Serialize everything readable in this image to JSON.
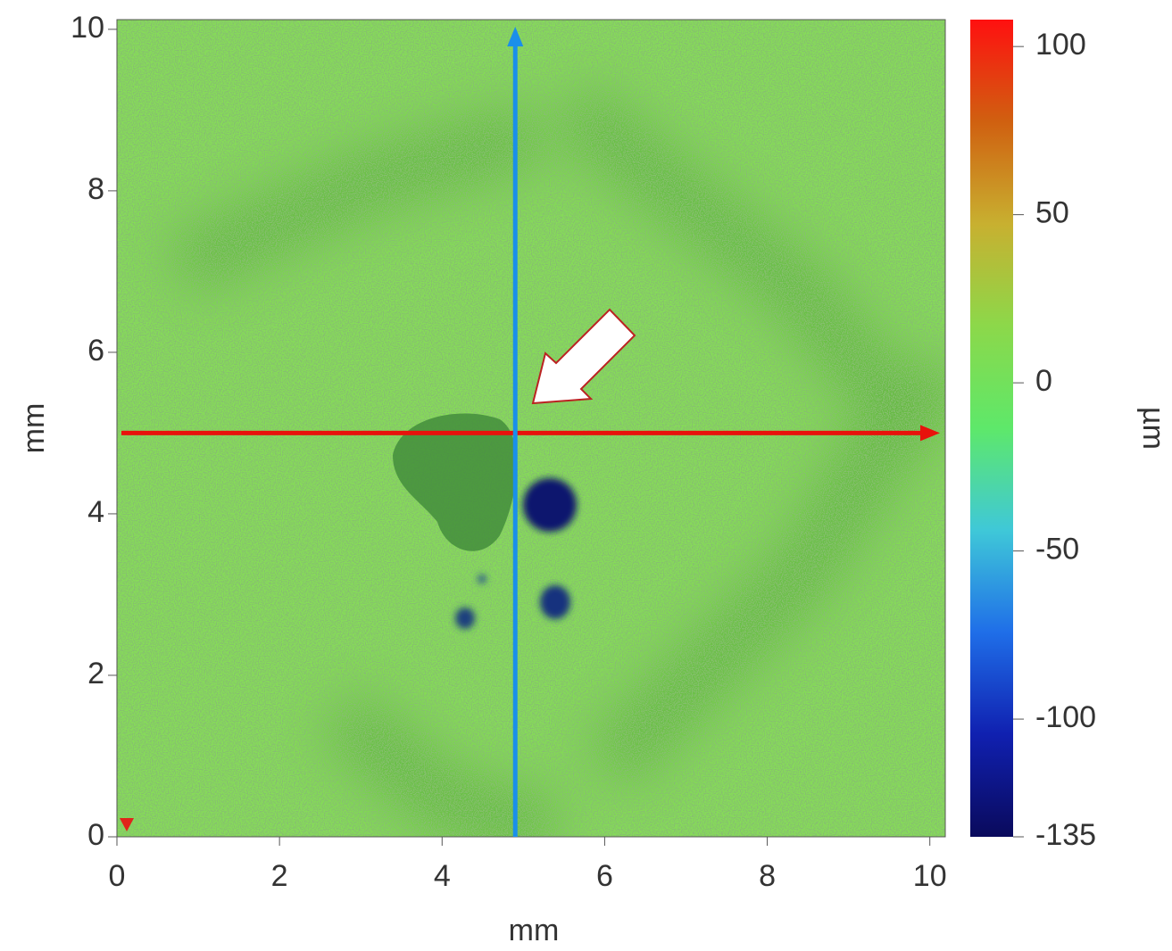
{
  "chart_data": {
    "type": "heatmap",
    "xlabel": "mm",
    "ylabel": "mm",
    "xlim": [
      0,
      10.19
    ],
    "ylim": [
      0,
      10.12
    ],
    "xticks": [
      0,
      2,
      4,
      6,
      8,
      10
    ],
    "yticks": [
      0,
      2,
      4,
      6,
      8,
      10
    ],
    "colorbar": {
      "label": "µm",
      "lim": [
        -135,
        108
      ],
      "ticks": [
        100,
        50,
        0,
        -50,
        -100,
        -135
      ],
      "colors": [
        "#0a0a5c",
        "#1020b0",
        "#1f6ee8",
        "#3fc8d8",
        "#5ee86a",
        "#8cd84a",
        "#c8b030",
        "#d06010",
        "#ff1010"
      ]
    },
    "profiles": [
      {
        "orientation": "horizontal",
        "y": 5,
        "color": "#e8120c"
      },
      {
        "orientation": "vertical",
        "x": 4.9,
        "color": "#1a8fea"
      }
    ]
  }
}
